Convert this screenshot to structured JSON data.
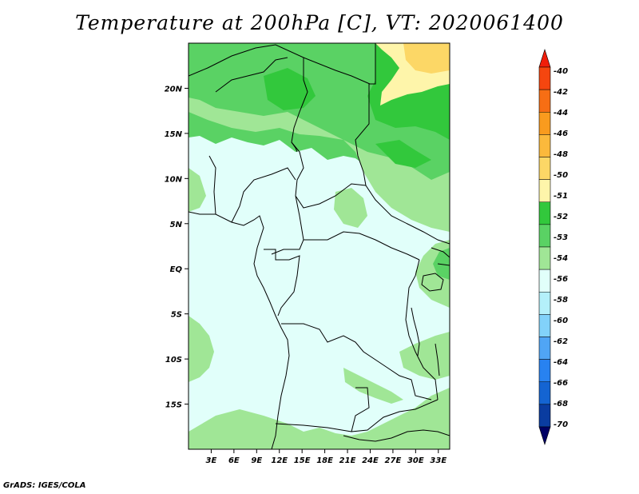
{
  "title": "Temperature at 200hPa [C], VT: 2020061400",
  "credit": "GrADS: IGES/COLA",
  "map": {
    "lon_range": [
      0,
      34.5
    ],
    "lat_range": [
      -20,
      25
    ],
    "lat_ticks": [
      {
        "value": 20,
        "label": "20N"
      },
      {
        "value": 15,
        "label": "15N"
      },
      {
        "value": 10,
        "label": "10N"
      },
      {
        "value": 5,
        "label": "5N"
      },
      {
        "value": 0,
        "label": "EQ"
      },
      {
        "value": -5,
        "label": "5S"
      },
      {
        "value": -10,
        "label": "10S"
      },
      {
        "value": -15,
        "label": "15S"
      }
    ],
    "lon_ticks": [
      {
        "value": 3,
        "label": "3E"
      },
      {
        "value": 6,
        "label": "6E"
      },
      {
        "value": 9,
        "label": "9E"
      },
      {
        "value": 12,
        "label": "12E"
      },
      {
        "value": 15,
        "label": "15E"
      },
      {
        "value": 18,
        "label": "18E"
      },
      {
        "value": 21,
        "label": "21E"
      },
      {
        "value": 24,
        "label": "24E"
      },
      {
        "value": 27,
        "label": "27E"
      },
      {
        "value": 30,
        "label": "30E"
      },
      {
        "value": 33,
        "label": "33E"
      }
    ]
  },
  "colorbar": {
    "labels": [
      "-40",
      "-42",
      "-44",
      "-46",
      "-48",
      "-50",
      "-51",
      "-52",
      "-53",
      "-54",
      "-56",
      "-58",
      "-60",
      "-62",
      "-64",
      "-66",
      "-68",
      "-70"
    ],
    "colors": [
      "#f01e0a",
      "#f5460f",
      "#f76e14",
      "#f99b1e",
      "#fbb93c",
      "#fcd766",
      "#fef5aa",
      "#32c83c",
      "#5ad264",
      "#a0e696",
      "#e1fffa",
      "#b4f0fa",
      "#82d2fa",
      "#50a5f5",
      "#2882f0",
      "#1464d2",
      "#0a3ca0",
      "#000064"
    ]
  },
  "palette": {
    "ocean": "#e1fffa",
    "l54": "#a0e696",
    "l53": "#5ad264",
    "l52": "#32c83c",
    "l51": "#fef5aa",
    "l50": "#fcd766"
  }
}
